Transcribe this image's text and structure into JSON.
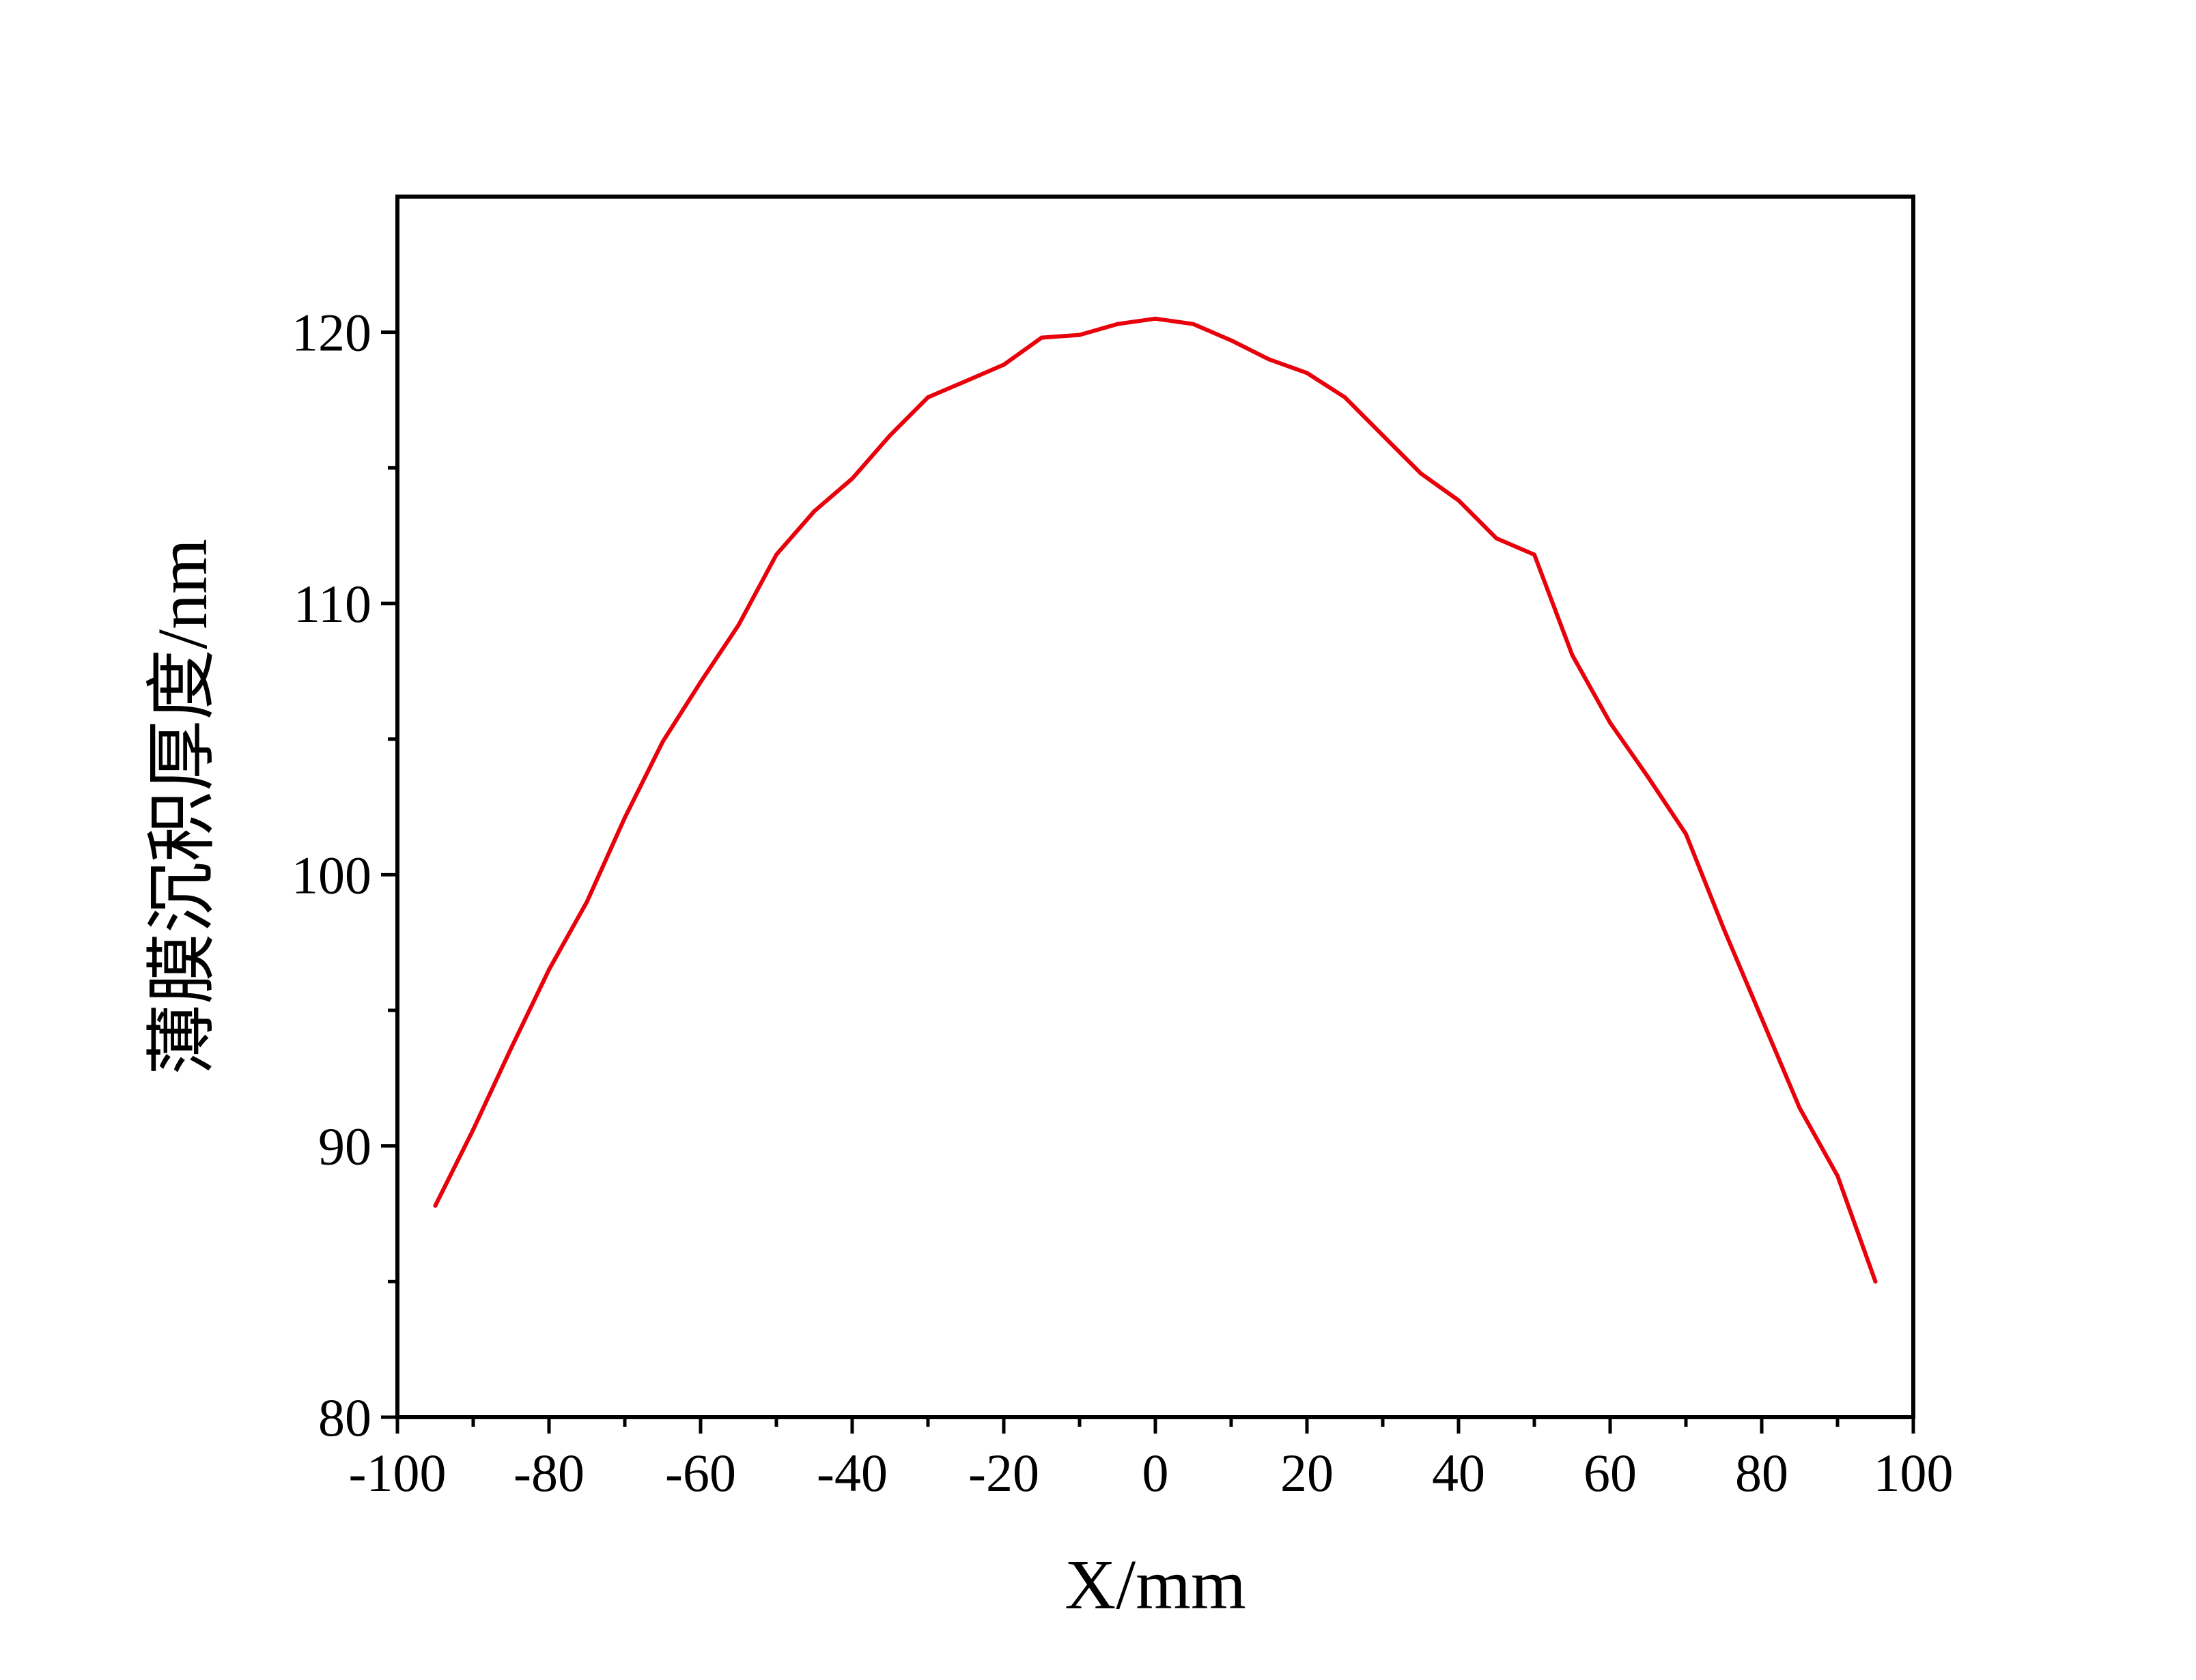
{
  "chart_data": {
    "type": "line",
    "title": "",
    "xlabel": "X/mm",
    "ylabel": "薄膜沉积厚度/nm",
    "xlim": [
      -100,
      100
    ],
    "ylim": [
      80,
      125
    ],
    "x_major_ticks": [
      -100,
      -80,
      -60,
      -40,
      -20,
      0,
      20,
      40,
      60,
      80,
      100
    ],
    "x_tick_labels": [
      "-100",
      "-80",
      "-60",
      "-40",
      "-20",
      "0",
      "20",
      "40",
      "60",
      "80",
      "100"
    ],
    "x_minor_ticks": [
      -90,
      -70,
      -50,
      -30,
      -10,
      10,
      30,
      50,
      70,
      90
    ],
    "y_major_ticks": [
      80,
      90,
      100,
      110,
      120
    ],
    "y_tick_labels": [
      "80",
      "90",
      "100",
      "110",
      "120"
    ],
    "y_minor_ticks": [
      85,
      95,
      105,
      115
    ],
    "grid": false,
    "legend": "none",
    "series": [
      {
        "color": "#e8000b",
        "x": [
          -95,
          -90,
          -85,
          -80,
          -75,
          -70,
          -65,
          -60,
          -55,
          -50,
          -45,
          -40,
          -35,
          -30,
          -25,
          -20,
          -15,
          -10,
          -5,
          0,
          5,
          10,
          15,
          20,
          25,
          30,
          35,
          40,
          45,
          50,
          55,
          60,
          65,
          70,
          75,
          80,
          85,
          90,
          95
        ],
        "y": [
          87.8,
          90.6,
          93.6,
          96.5,
          99.0,
          102.1,
          104.9,
          107.1,
          109.2,
          111.8,
          113.4,
          114.6,
          116.2,
          117.6,
          118.2,
          118.8,
          119.8,
          119.9,
          120.3,
          120.5,
          120.3,
          119.7,
          119.0,
          118.5,
          117.6,
          116.2,
          114.8,
          113.8,
          112.4,
          111.8,
          108.1,
          105.6,
          103.6,
          101.5,
          98.0,
          94.7,
          91.4,
          88.9,
          85.0
        ]
      }
    ]
  }
}
